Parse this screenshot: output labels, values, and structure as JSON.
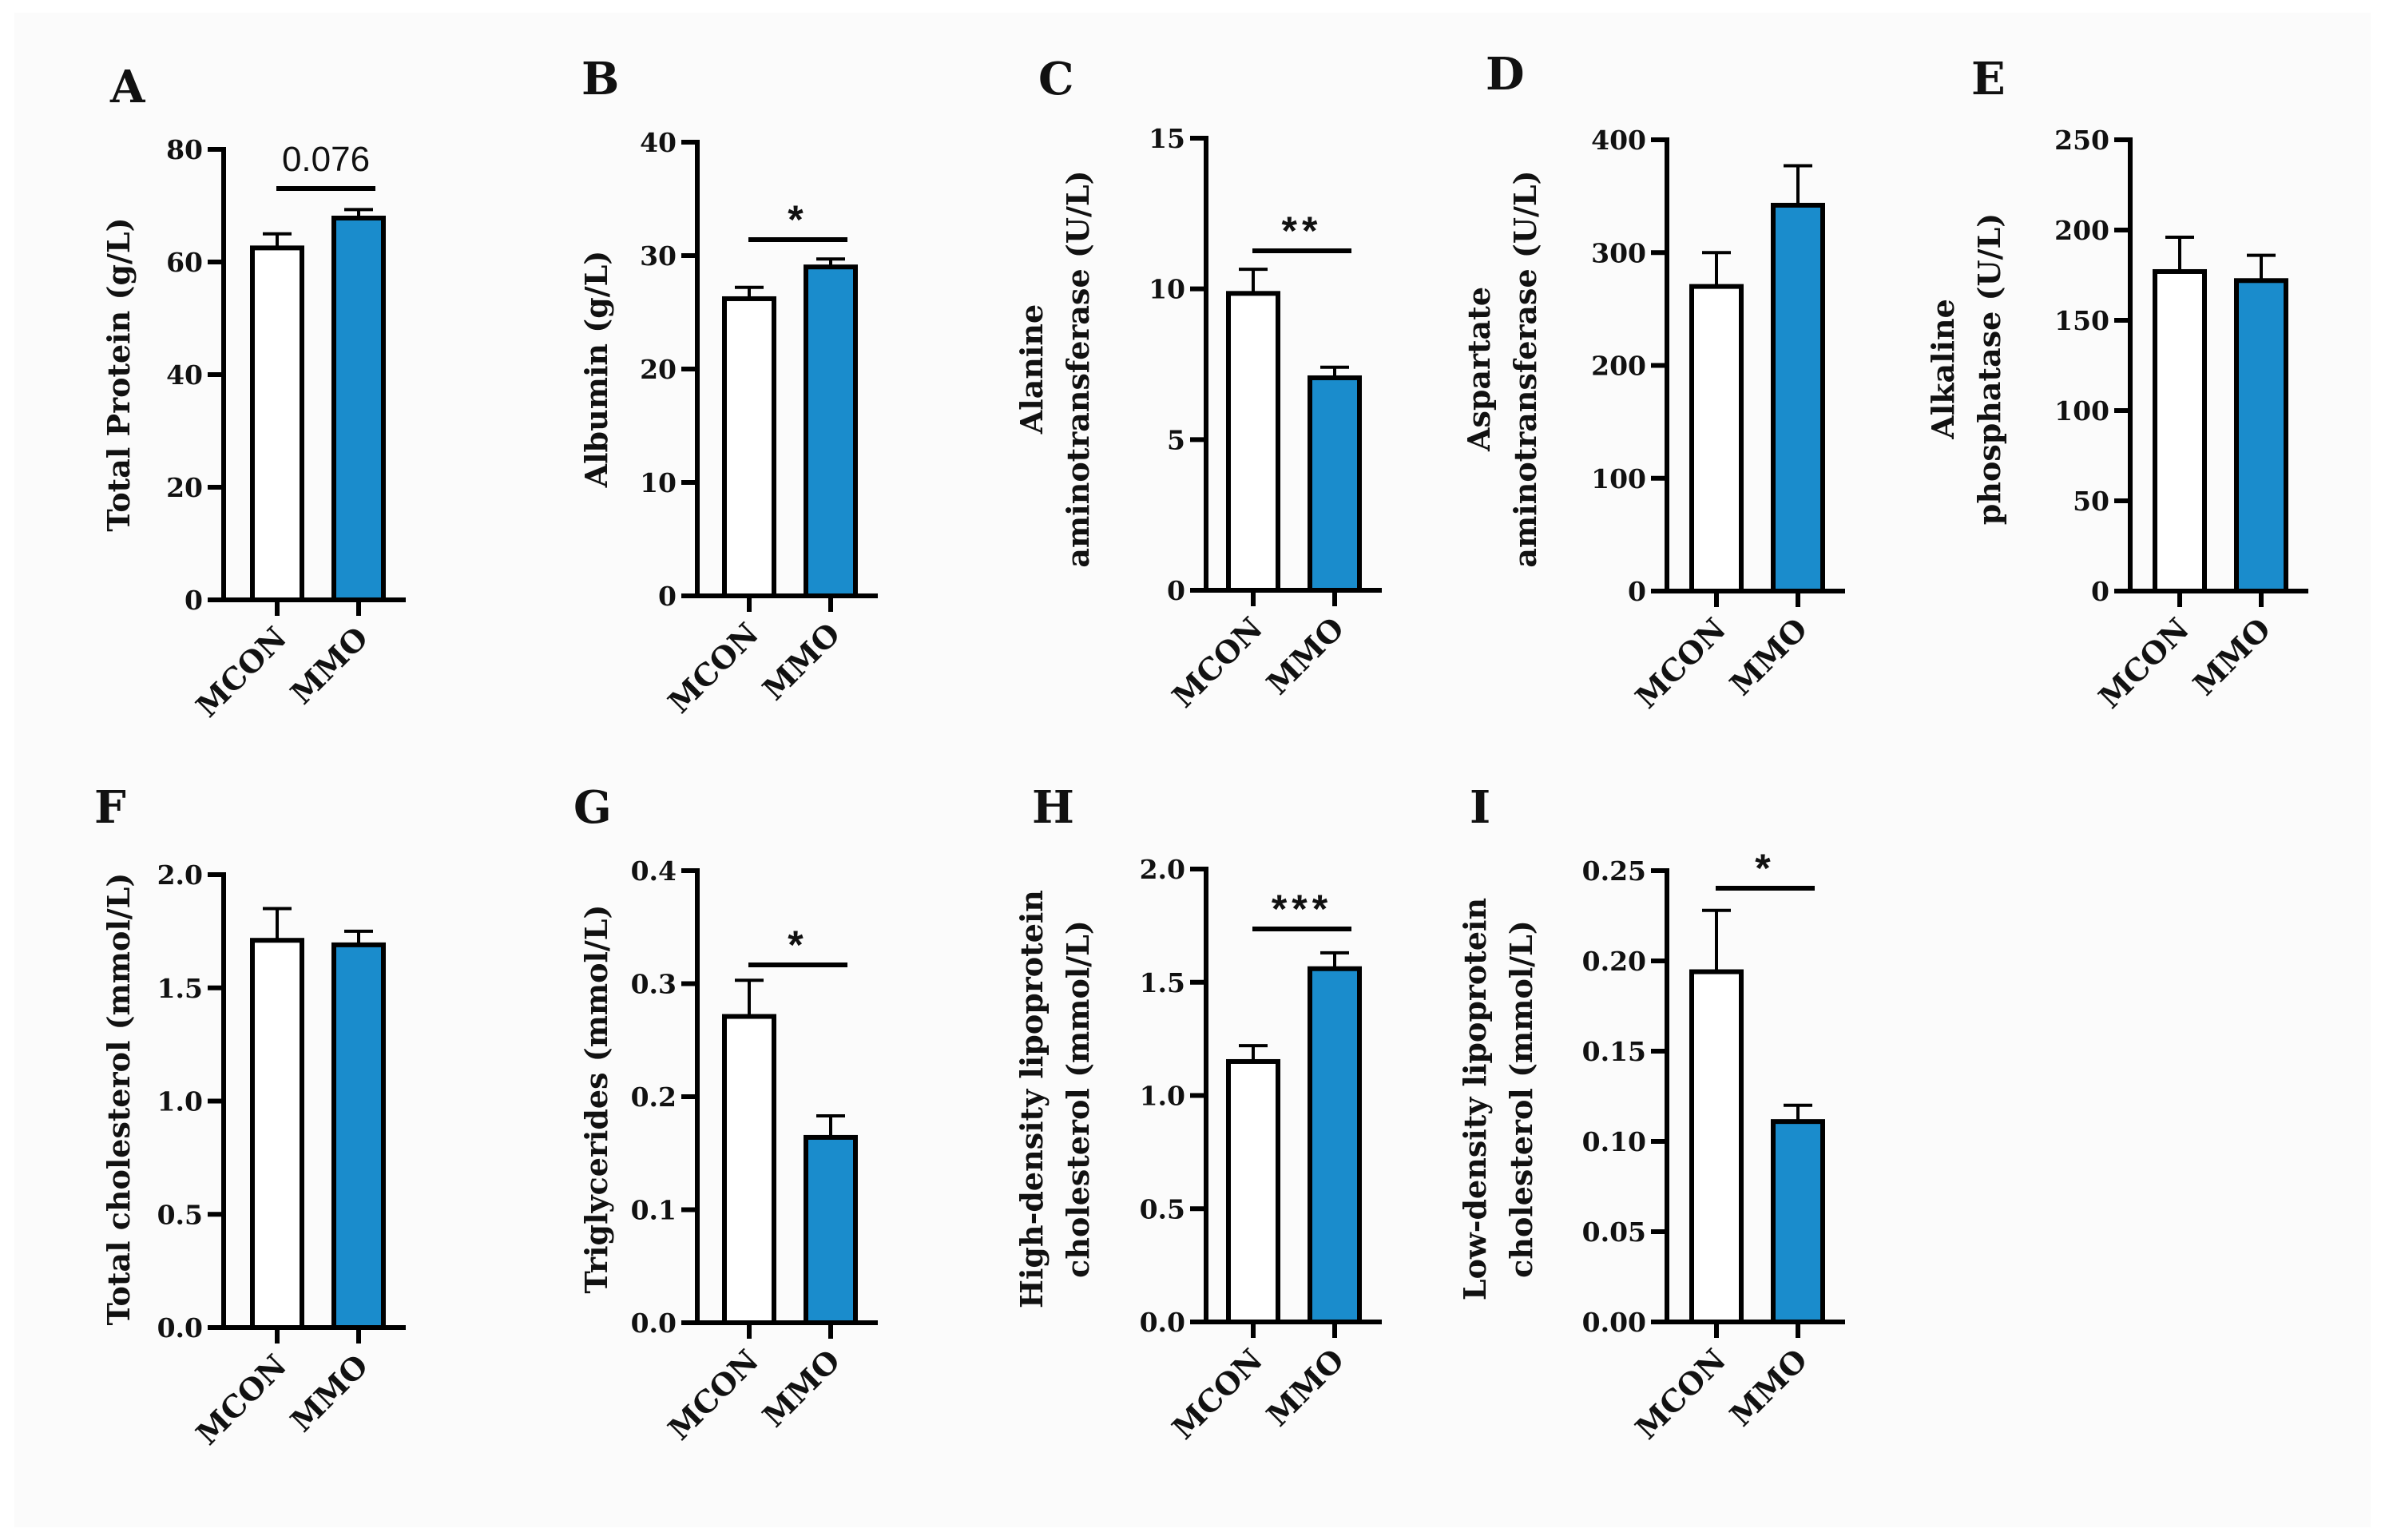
{
  "colors": {
    "mcon_fill": "#ffffff",
    "mmo_fill": "#1a8ccc",
    "stroke": "#000000"
  },
  "chart_data": [
    {
      "type": "bar",
      "panel": "A",
      "categories": [
        "MCON",
        "MMO"
      ],
      "values": [
        62.5,
        67.8
      ],
      "errors": [
        2.5,
        1.5
      ],
      "ylabel": [
        "Total Protein (g/L)"
      ],
      "ylim": [
        0,
        80
      ],
      "yticks": [
        "0",
        "20",
        "40",
        "60",
        "80"
      ],
      "significance": "0.076"
    },
    {
      "type": "bar",
      "panel": "B",
      "categories": [
        "MCON",
        "MMO"
      ],
      "values": [
        26.2,
        29.0
      ],
      "errors": [
        1.0,
        0.7
      ],
      "ylabel": [
        "Albumin (g/L)"
      ],
      "ylim": [
        0,
        40
      ],
      "yticks": [
        "0",
        "10",
        "20",
        "30",
        "40"
      ],
      "significance": "*"
    },
    {
      "type": "bar",
      "panel": "C",
      "categories": [
        "MCON",
        "MMO"
      ],
      "values": [
        9.85,
        7.05
      ],
      "errors": [
        0.8,
        0.35
      ],
      "ylabel": [
        "Alanine",
        "aminotransferase (U/L)"
      ],
      "ylim": [
        0,
        15
      ],
      "yticks": [
        "0",
        "5",
        "10",
        "15"
      ],
      "significance": "**"
    },
    {
      "type": "bar",
      "panel": "D",
      "categories": [
        "MCON",
        "MMO"
      ],
      "values": [
        270,
        342
      ],
      "errors": [
        30,
        35
      ],
      "ylabel": [
        "Aspartate",
        "aminotransferase (U/L)"
      ],
      "ylim": [
        0,
        400
      ],
      "yticks": [
        "0",
        "100",
        "200",
        "300",
        "400"
      ],
      "significance": ""
    },
    {
      "type": "bar",
      "panel": "E",
      "categories": [
        "MCON",
        "MMO"
      ],
      "values": [
        177,
        172
      ],
      "errors": [
        19,
        14
      ],
      "ylabel": [
        "Alkaline",
        "phosphatase (U/L)"
      ],
      "ylim": [
        0,
        250
      ],
      "yticks": [
        "0",
        "50",
        "100",
        "150",
        "200",
        "250"
      ],
      "significance": ""
    },
    {
      "type": "bar",
      "panel": "F",
      "categories": [
        "MCON",
        "MMO"
      ],
      "values": [
        1.71,
        1.69
      ],
      "errors": [
        0.14,
        0.06
      ],
      "ylabel": [
        "Total cholesterol (mmol/L)"
      ],
      "ylim": [
        0,
        2.0
      ],
      "yticks": [
        "0.0",
        "0.5",
        "1.0",
        "1.5",
        "2.0"
      ],
      "significance": ""
    },
    {
      "type": "bar",
      "panel": "G",
      "categories": [
        "MCON",
        "MMO"
      ],
      "values": [
        0.271,
        0.164
      ],
      "errors": [
        0.032,
        0.019
      ],
      "ylabel": [
        "Triglycerides (mmol/L)"
      ],
      "ylim": [
        0,
        0.4
      ],
      "yticks": [
        "0.0",
        "0.1",
        "0.2",
        "0.3",
        "0.4"
      ],
      "significance": "*"
    },
    {
      "type": "bar",
      "panel": "H",
      "categories": [
        "MCON",
        "MMO"
      ],
      "values": [
        1.15,
        1.56
      ],
      "errors": [
        0.07,
        0.07
      ],
      "ylabel": [
        "High-density lipoprotein",
        "cholesterol (mmol/L)"
      ],
      "ylim": [
        0,
        2.0
      ],
      "yticks": [
        "0.0",
        "0.5",
        "1.0",
        "1.5",
        "2.0"
      ],
      "significance": "***"
    },
    {
      "type": "bar",
      "panel": "I",
      "categories": [
        "MCON",
        "MMO"
      ],
      "values": [
        0.194,
        0.111
      ],
      "errors": [
        0.034,
        0.009
      ],
      "ylabel": [
        "Low-density lipoprotein",
        "cholesterol (mmol/L)"
      ],
      "ylim": [
        0,
        0.25
      ],
      "yticks": [
        "0.00",
        "0.05",
        "0.10",
        "0.15",
        "0.20",
        "0.25"
      ],
      "significance": "*"
    }
  ]
}
